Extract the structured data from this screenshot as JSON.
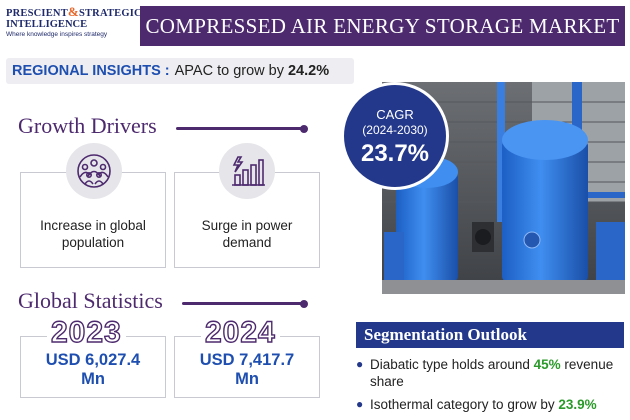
{
  "logo": {
    "line1a": "PRESCIENT",
    "amp": "&",
    "line1b": "STRATEGIC",
    "line2": "INTELLIGENCE",
    "tagline": "Where knowledge inspires strategy"
  },
  "title": "COMPRESSED AIR ENERGY STORAGE MARKET",
  "regional": {
    "label": "REGIONAL INSIGHTS :",
    "text": "APAC to grow by",
    "value": "24.2%"
  },
  "growth_drivers": {
    "heading": "Growth Drivers",
    "items": [
      {
        "icon": "population-icon",
        "text_line1": "Increase in global",
        "text_line2": "population"
      },
      {
        "icon": "power-growth-icon",
        "text_line1": "Surge in power",
        "text_line2": "demand"
      }
    ]
  },
  "global_statistics": {
    "heading": "Global Statistics",
    "items": [
      {
        "year": "2023",
        "value_line1": "USD 6,027.4",
        "value_line2": "Mn"
      },
      {
        "year": "2024",
        "value_line1": "USD 7,417.7",
        "value_line2": "Mn"
      }
    ]
  },
  "cagr": {
    "label": "CAGR",
    "period": "(2024-2030)",
    "value": "23.7%"
  },
  "segmentation": {
    "heading": "Segmentation Outlook",
    "items": [
      {
        "pre": "Diabatic type holds around",
        "highlight": "45%",
        "post": "revenue share"
      },
      {
        "pre": "Isothermal category to grow by",
        "highlight": "23.9%",
        "post": ""
      }
    ]
  },
  "colors": {
    "purple": "#4d2a6e",
    "blue": "#1e4fb0",
    "navy": "#23388a",
    "green": "#2a9a2a",
    "orange": "#e8672a"
  }
}
